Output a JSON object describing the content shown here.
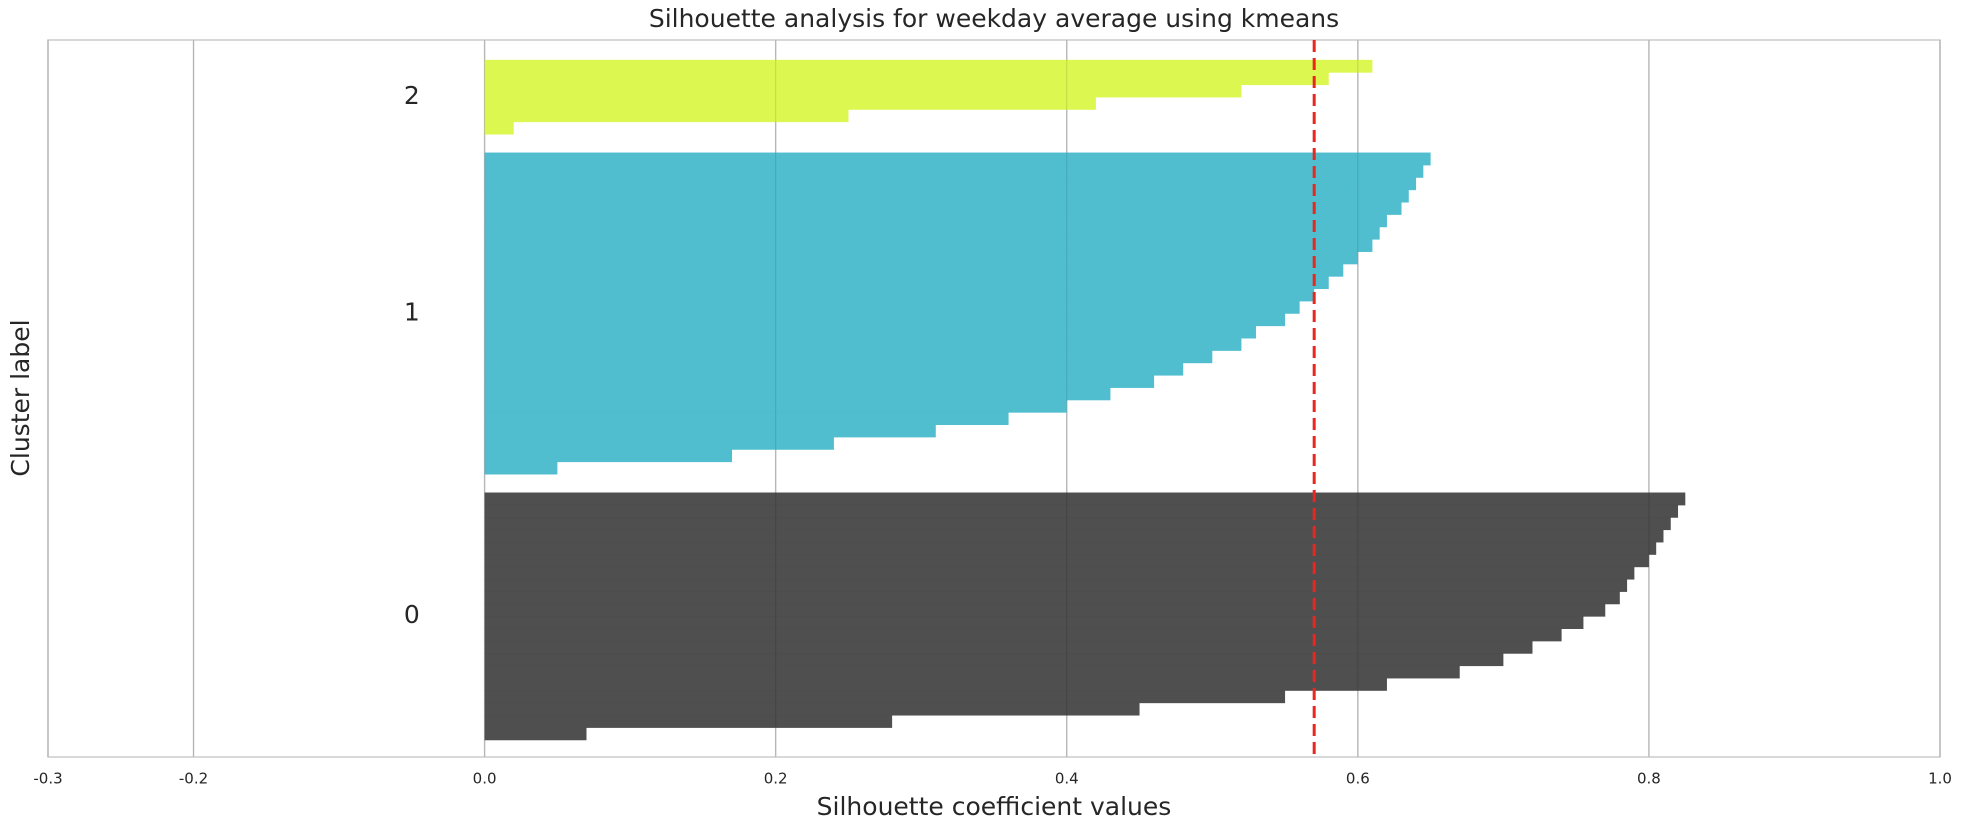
{
  "chart_data": {
    "type": "silhouette",
    "title": "Silhouette analysis for weekday average using kmeans",
    "xlabel": "Silhouette coefficient values",
    "ylabel": "Cluster label",
    "xlim": [
      -0.3,
      1.0
    ],
    "xticks": [
      -0.3,
      -0.2,
      {
        "value": 0,
        "label": "0.0"
      },
      0.2,
      0.4,
      0.6,
      0.8,
      {
        "value": 1,
        "label": "1.0"
      }
    ],
    "grid": true,
    "average_line": {
      "value": 0.57,
      "color": "#e8271e"
    },
    "series": [
      {
        "name": "0",
        "color": "#4b4b4b",
        "values": [
          0.07,
          0.28,
          0.45,
          0.55,
          0.62,
          0.67,
          0.7,
          0.72,
          0.74,
          0.755,
          0.77,
          0.78,
          0.785,
          0.79,
          0.8,
          0.805,
          0.81,
          0.815,
          0.82,
          0.825
        ]
      },
      {
        "name": "1",
        "color": "#4dbdce",
        "values": [
          0.05,
          0.17,
          0.24,
          0.31,
          0.36,
          0.4,
          0.43,
          0.46,
          0.48,
          0.5,
          0.52,
          0.53,
          0.55,
          0.56,
          0.57,
          0.58,
          0.59,
          0.6,
          0.61,
          0.615,
          0.62,
          0.63,
          0.635,
          0.64,
          0.645,
          0.65
        ]
      },
      {
        "name": "2",
        "color": "#dcf74e",
        "values": [
          0.02,
          0.25,
          0.42,
          0.52,
          0.58,
          0.61
        ]
      }
    ]
  }
}
